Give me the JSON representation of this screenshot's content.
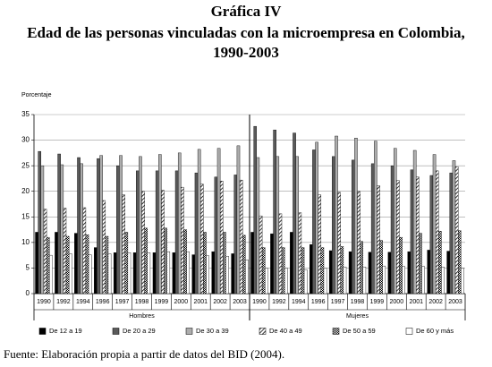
{
  "chart_data": {
    "type": "bar",
    "title": "Gráfica IV",
    "subtitle": [
      "Edad de las personas vinculadas con la microempresa en Colombia,",
      "1990-2003"
    ],
    "y_label": "Porcentaje",
    "source": "Fuente: Elaboración propia a partir de datos del BID (2004).",
    "groups": [
      "Hombres",
      "Mujeres"
    ],
    "categories": [
      "1990",
      "1992",
      "1994",
      "1996",
      "1997",
      "1998",
      "1999",
      "2000",
      "2001",
      "2002",
      "2003",
      "1990",
      "1992",
      "1994",
      "1996",
      "1997",
      "1998",
      "1999",
      "2000",
      "2001",
      "2002",
      "2003"
    ],
    "ylim": [
      0,
      35
    ],
    "yticks": [
      0,
      5,
      10,
      15,
      20,
      25,
      30,
      35
    ],
    "grid": true,
    "legend": "bottom",
    "series": [
      {
        "name": "De 12 a 19",
        "color": "#000000",
        "values": [
          12,
          12,
          11.8,
          9,
          8,
          8,
          8,
          8,
          7.6,
          8.2,
          7.8,
          12,
          11.7,
          12,
          9.6,
          8.4,
          8.2,
          8.1,
          8.1,
          8.2,
          8.5,
          8.3
        ]
      },
      {
        "name": "De 20 a 29",
        "color": "#5a5a5a",
        "values": [
          27.8,
          27.3,
          26.6,
          26.4,
          25,
          24,
          24,
          24,
          23.6,
          22.8,
          23.2,
          32.7,
          32,
          31.4,
          28.1,
          26.8,
          26.1,
          25.4,
          25,
          24.2,
          23.1,
          23.6
        ]
      },
      {
        "name": "De 30 a 39",
        "color": "#adadad",
        "values": [
          25,
          25.2,
          25.4,
          27,
          27,
          26.8,
          27.2,
          27.5,
          28.2,
          28.4,
          28.9,
          26.6,
          26.8,
          26.8,
          29.6,
          30.8,
          30.4,
          29.8,
          28.4,
          28,
          27.2,
          26
        ]
      },
      {
        "name": "De 40 a 49",
        "color": "#ffffff",
        "pattern": "diagonal",
        "values": [
          16.5,
          16.7,
          16.8,
          18.2,
          19.3,
          20,
          20.2,
          20.8,
          21.4,
          22,
          22.2,
          15.2,
          15.6,
          15.8,
          19.3,
          19.8,
          20,
          21.1,
          22.1,
          22.8,
          24,
          24.8
        ]
      },
      {
        "name": "De 50 a 59",
        "color": "#ffffff",
        "pattern": "dense",
        "values": [
          11,
          11.2,
          11.5,
          11.2,
          12,
          12.8,
          12.8,
          12.5,
          12,
          12,
          11.4,
          9,
          9,
          9,
          9,
          9.2,
          10.2,
          10.4,
          11,
          11.8,
          12.2,
          12.3
        ]
      },
      {
        "name": "De 60 y más",
        "color": "#ffffff",
        "values": [
          7.5,
          7.8,
          7.6,
          7.8,
          8,
          8,
          8.2,
          8.2,
          7.4,
          7.3,
          6.6,
          5,
          5,
          4.7,
          5,
          5.2,
          5.2,
          5.4,
          5.3,
          5.3,
          5.2,
          5
        ]
      }
    ]
  }
}
